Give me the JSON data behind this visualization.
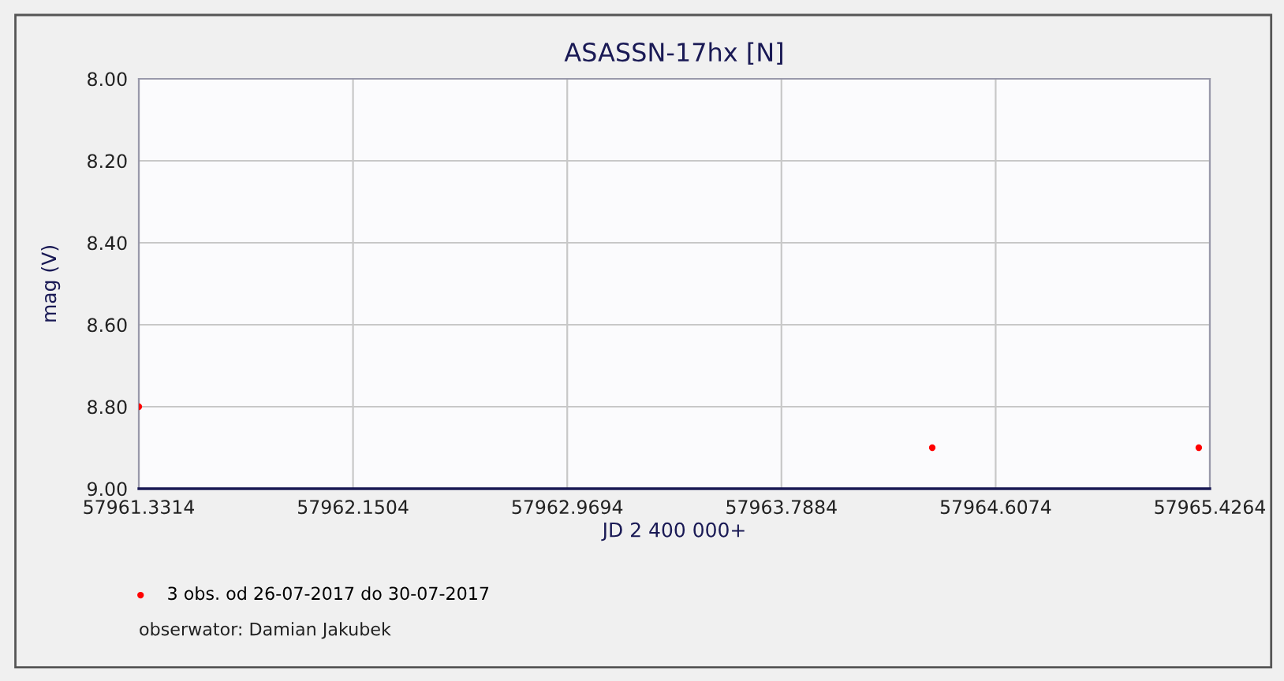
{
  "chart_data": {
    "type": "scatter",
    "title": "ASASSN-17hx [N]",
    "xlabel": "JD 2 400 000+",
    "ylabel": "mag (V)",
    "series": [
      {
        "name": "3 obs. od 26-07-2017 do 30-07-2017",
        "color": "#ff0000",
        "x": [
          57961.3314,
          57964.365,
          57965.384
        ],
        "values": [
          8.8,
          8.9,
          8.9
        ]
      }
    ],
    "xlim": [
      57961.3314,
      57965.4264
    ],
    "xticks": [
      57961.3314,
      57962.1504,
      57962.9694,
      57963.7884,
      57964.6074,
      57965.4264
    ],
    "ylim": [
      9.0,
      8.0
    ],
    "yticks": [
      {
        "value": 8.0,
        "label": "8.00"
      },
      {
        "value": 8.2,
        "label": "8.20"
      },
      {
        "value": 8.4,
        "label": "8.40"
      },
      {
        "value": 8.6,
        "label": "8.60"
      },
      {
        "value": 8.8,
        "label": "8.80"
      },
      {
        "value": 9.0,
        "label": "9.00"
      }
    ],
    "grid": true,
    "legend": "bottom left",
    "marker": "circle",
    "annotations": [
      "obserwator: Damian Jakubek"
    ]
  }
}
